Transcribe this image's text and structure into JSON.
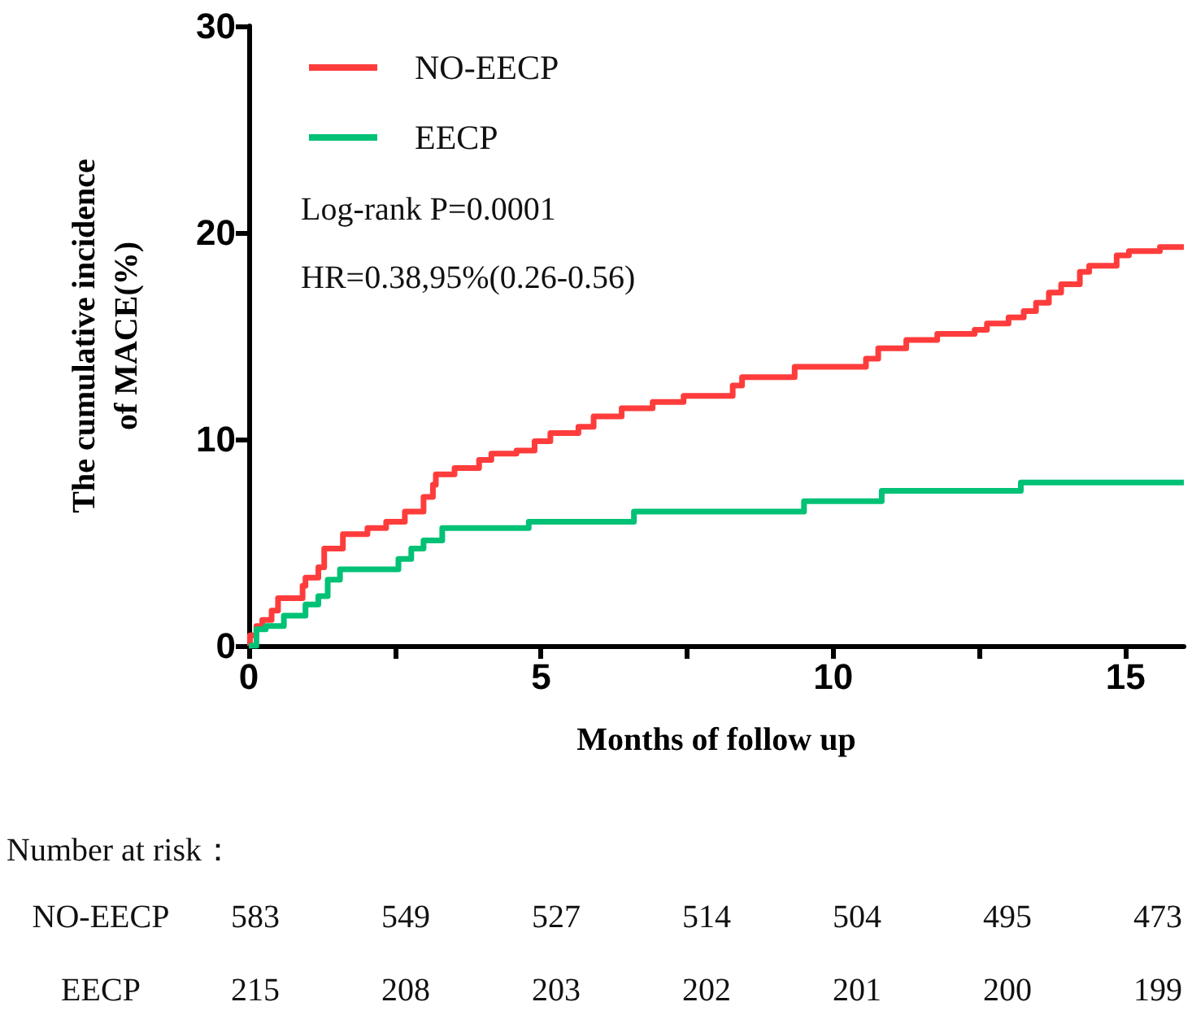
{
  "chart_data": {
    "type": "step",
    "xlabel": "Months of follow up",
    "ylabel": "The cumulative incidence\nof MACE(%)",
    "xlim": [
      0,
      16
    ],
    "xticks": [
      0,
      {
        "value": 2.5,
        "label": null
      },
      5,
      {
        "value": 7.5,
        "label": null
      },
      10,
      {
        "value": 12.5,
        "label": null
      },
      15
    ],
    "ylim": [
      0,
      30
    ],
    "yticks": [
      0,
      10,
      20,
      30
    ],
    "grid": false,
    "legend": "top left",
    "marker": "none",
    "line_style": "solid",
    "series": [
      {
        "name": "NO-EECP",
        "color": "#ff3c3c",
        "x": [
          0,
          0.02,
          0.13,
          0.23,
          0.39,
          0.5,
          0.92,
          0.97,
          1.19,
          1.29,
          1.61,
          2.03,
          2.35,
          2.67,
          2.99,
          3.15,
          3.2,
          3.52,
          3.94,
          4.15,
          4.58,
          4.89,
          5.16,
          5.64,
          5.9,
          6.38,
          6.91,
          7.44,
          8.28,
          8.44,
          9.34,
          10.56,
          10.77,
          11.25,
          11.78,
          12.42,
          12.63,
          13.0,
          13.26,
          13.47,
          13.69,
          13.9,
          14.22,
          14.38,
          14.85,
          15.06,
          15.59,
          16
        ],
        "values": [
          0,
          0.5,
          0.95,
          1.25,
          1.7,
          2.3,
          2.9,
          3.3,
          3.8,
          4.7,
          5.4,
          5.7,
          6.0,
          6.5,
          7.2,
          7.8,
          8.3,
          8.6,
          9.0,
          9.3,
          9.45,
          9.9,
          10.3,
          10.6,
          11.1,
          11.5,
          11.8,
          12.1,
          12.6,
          13.0,
          13.5,
          13.9,
          14.4,
          14.8,
          15.1,
          15.3,
          15.6,
          15.9,
          16.2,
          16.6,
          17.1,
          17.5,
          18.1,
          18.4,
          18.9,
          19.1,
          19.3,
          19.3
        ]
      },
      {
        "name": "EECP",
        "color": "#00c176",
        "x": [
          0,
          0.13,
          0.29,
          0.6,
          0.97,
          1.19,
          1.35,
          1.56,
          2.56,
          2.78,
          2.99,
          3.31,
          4.79,
          6.59,
          9.5,
          10.83,
          13.21,
          16
        ],
        "values": [
          0,
          0.8,
          0.95,
          1.46,
          2.0,
          2.4,
          3.2,
          3.7,
          4.2,
          4.7,
          5.1,
          5.7,
          6.0,
          6.5,
          7.0,
          7.5,
          7.9,
          7.9
        ]
      }
    ],
    "annotations": [
      "Log-rank P=0.0001",
      "HR=0.38,95%(0.26-0.56)",
      "Number at risk：",
      "NO-EECP 583 549 527 514 504 495 473",
      "EECP 215 208 203 202 201 200 199"
    ]
  }
}
